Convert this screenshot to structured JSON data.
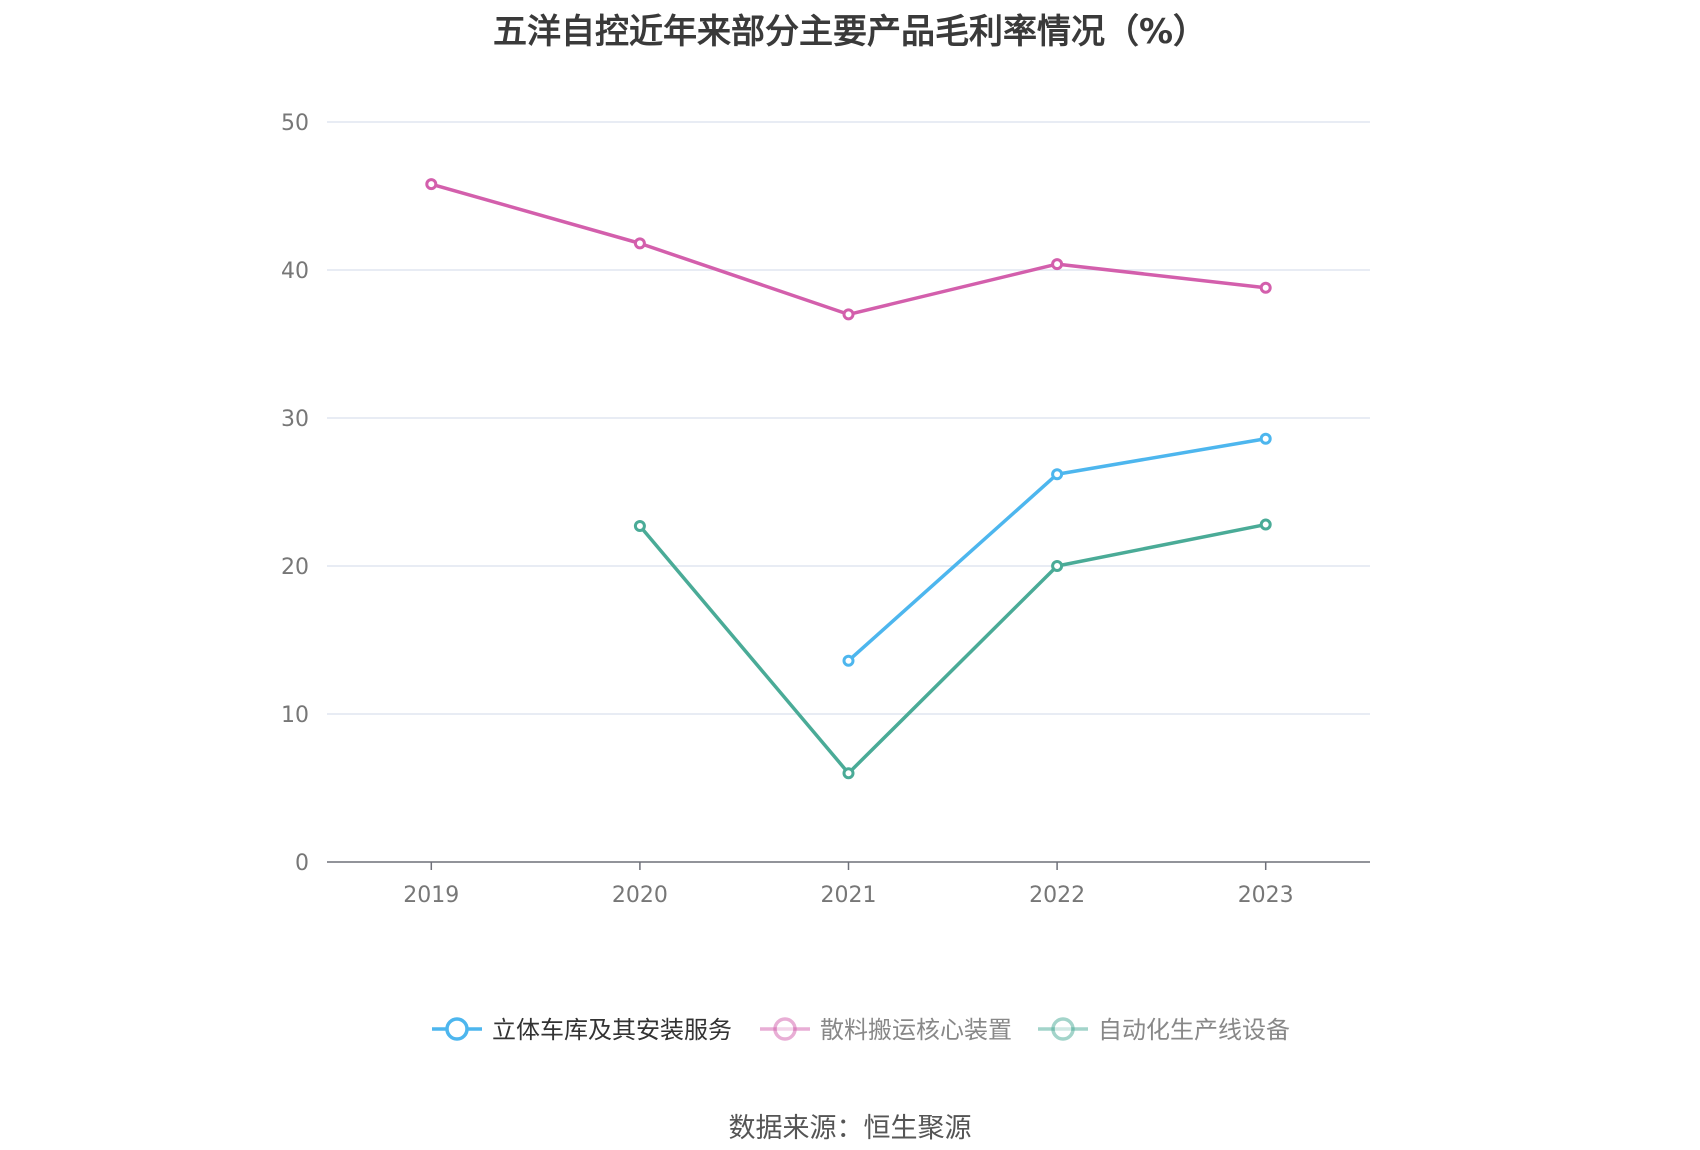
{
  "chart_data": {
    "type": "line",
    "title": "五洋自控近年来部分主要产品毛利率情况（%）",
    "categories": [
      "2019",
      "2020",
      "2021",
      "2022",
      "2023"
    ],
    "ylim": [
      0,
      50
    ],
    "yticks": [
      0,
      10,
      20,
      30,
      40,
      50
    ],
    "grid": true,
    "legend_position": "bottom",
    "series": [
      {
        "name": "立体车库及其安装服务",
        "color": "#4db6ee",
        "values": [
          null,
          null,
          13.6,
          26.2,
          28.6
        ]
      },
      {
        "name": "散料搬运核心装置",
        "color": "#d35fac",
        "values": [
          45.8,
          41.8,
          37.0,
          40.4,
          38.8
        ]
      },
      {
        "name": "自动化生产线设备",
        "color": "#4aab97",
        "values": [
          null,
          22.7,
          6.0,
          20.0,
          22.8
        ]
      }
    ],
    "legend_colors": {
      "active_text": "#333333",
      "inactive_text": "#888888"
    }
  },
  "source": "数据来源：恒生聚源"
}
